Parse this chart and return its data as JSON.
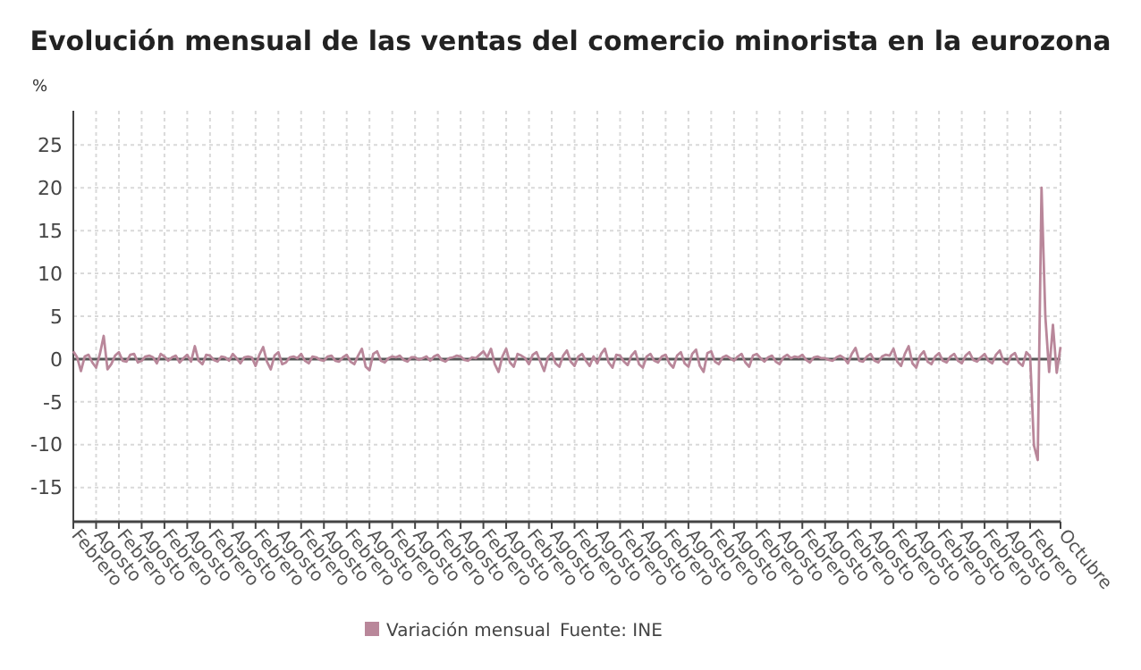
{
  "chart_data": {
    "type": "line",
    "title": "Evolución mensual de las ventas del comercio minorista en la eurozona",
    "ylabel": "%",
    "annotations": [
      "Fuente: INE"
    ],
    "categories": [
      "Febrero",
      null,
      null,
      null,
      null,
      null,
      "Agosto",
      null,
      null,
      null,
      null,
      null,
      "Febrero",
      null,
      null,
      null,
      null,
      null,
      "Agosto",
      null,
      null,
      null,
      null,
      null,
      "Febrero",
      null,
      null,
      null,
      null,
      null,
      "Agosto",
      null,
      null,
      null,
      null,
      null,
      "Febrero",
      null,
      null,
      null,
      null,
      null,
      "Agosto",
      null,
      null,
      null,
      null,
      null,
      "Febrero",
      null,
      null,
      null,
      null,
      null,
      "Agosto",
      null,
      null,
      null,
      null,
      null,
      "Febrero",
      null,
      null,
      null,
      null,
      null,
      "Agosto",
      null,
      null,
      null,
      null,
      null,
      "Febrero",
      null,
      null,
      null,
      null,
      null,
      "Agosto",
      null,
      null,
      null,
      null,
      null,
      "Febrero",
      null,
      null,
      null,
      null,
      null,
      "Agosto",
      null,
      null,
      null,
      null,
      null,
      "Febrero",
      null,
      null,
      null,
      null,
      null,
      "Agosto",
      null,
      null,
      null,
      null,
      null,
      "Febrero",
      null,
      null,
      null,
      null,
      null,
      "Agosto",
      null,
      null,
      null,
      null,
      null,
      "Febrero",
      null,
      null,
      null,
      null,
      null,
      "Agosto",
      null,
      null,
      null,
      null,
      null,
      "Febrero",
      null,
      null,
      null,
      null,
      null,
      "Agosto",
      null,
      null,
      null,
      null,
      null,
      "Febrero",
      null,
      null,
      null,
      null,
      null,
      "Agosto",
      null,
      null,
      null,
      null,
      null,
      "Febrero",
      null,
      null,
      null,
      null,
      null,
      "Agosto",
      null,
      null,
      null,
      null,
      null,
      "Febrero",
      null,
      null,
      null,
      null,
      null,
      "Agosto",
      null,
      null,
      null,
      null,
      null,
      "Febrero",
      null,
      null,
      null,
      null,
      null,
      "Agosto",
      null,
      null,
      null,
      null,
      null,
      "Febrero",
      null,
      null,
      null,
      null,
      null,
      "Agosto",
      null,
      null,
      null,
      null,
      null,
      "Febrero",
      null,
      null,
      null,
      null,
      null,
      "Agosto",
      null,
      null,
      null,
      null,
      null,
      "Febrero",
      null,
      null,
      null,
      null,
      null,
      "Agosto",
      null,
      null,
      null,
      null,
      null,
      "Febrero",
      null,
      null,
      null,
      null,
      null,
      "Agosto",
      null,
      null,
      null,
      null,
      null,
      "Febrero",
      null,
      null,
      null,
      null,
      null,
      "Agosto",
      null,
      null,
      null,
      null,
      null,
      "Febrero",
      null,
      null,
      null,
      null,
      null,
      null,
      null,
      "Octubre"
    ],
    "series": [
      {
        "name": "Variación mensual",
        "color": "#b9879a",
        "values": [
          0.9,
          0.2,
          -1.4,
          0.3,
          0.5,
          -0.4,
          -1.0,
          0.6,
          2.7,
          -1.2,
          -0.6,
          0.4,
          0.8,
          -0.2,
          -0.3,
          0.5,
          0.6,
          -0.4,
          -0.2,
          0.3,
          0.4,
          0.2,
          -0.5,
          0.6,
          0.3,
          -0.2,
          0.2,
          0.4,
          -0.4,
          0.1,
          0.5,
          -0.3,
          1.5,
          -0.2,
          -0.6,
          0.5,
          0.4,
          -0.1,
          -0.3,
          0.3,
          0.2,
          -0.2,
          0.6,
          0.1,
          -0.5,
          0.2,
          0.3,
          0.2,
          -0.8,
          0.5,
          1.4,
          -0.3,
          -1.2,
          0.4,
          0.8,
          -0.6,
          -0.4,
          0.2,
          0.3,
          0.1,
          0.6,
          -0.2,
          -0.5,
          0.3,
          0.2,
          -0.1,
          -0.2,
          0.3,
          0.4,
          -0.2,
          -0.3,
          0.2,
          0.5,
          -0.3,
          -0.6,
          0.4,
          1.2,
          -0.9,
          -1.3,
          0.6,
          0.9,
          -0.2,
          -0.4,
          0.1,
          0.3,
          0.2,
          0.4,
          -0.1,
          -0.3,
          0.2,
          0.2,
          -0.1,
          0.1,
          0.3,
          -0.2,
          0.3,
          0.5,
          -0.1,
          -0.3,
          0.1,
          0.2,
          0.4,
          0.3,
          -0.1,
          -0.2,
          0.2,
          0.1,
          0.5,
          0.9,
          0.2,
          1.2,
          -0.6,
          -1.5,
          0.3,
          1.2,
          -0.4,
          -0.9,
          0.6,
          0.4,
          0.1,
          -0.6,
          0.5,
          0.8,
          -0.3,
          -1.4,
          0.2,
          0.7,
          -0.5,
          -0.9,
          0.4,
          1.0,
          -0.3,
          -0.8,
          0.3,
          0.6,
          -0.2,
          -0.8,
          0.3,
          -0.5,
          0.6,
          1.2,
          -0.4,
          -1.0,
          0.5,
          0.4,
          -0.3,
          -0.7,
          0.4,
          0.9,
          -0.6,
          -1.0,
          0.3,
          0.6,
          -0.2,
          -0.4,
          0.3,
          0.5,
          -0.5,
          -1.0,
          0.4,
          0.8,
          -0.5,
          -0.9,
          0.6,
          1.1,
          -0.8,
          -1.5,
          0.7,
          0.9,
          -0.3,
          -0.6,
          0.2,
          0.4,
          0.1,
          -0.2,
          0.3,
          0.6,
          -0.4,
          -0.9,
          0.4,
          0.6,
          0.1,
          -0.3,
          0.2,
          0.4,
          -0.3,
          -0.6,
          0.2,
          0.5,
          0.1,
          0.3,
          0.2,
          0.5,
          -0.1,
          -0.4,
          0.2,
          0.3,
          0.1,
          0.1,
          -0.1,
          -0.2,
          0.2,
          0.4,
          0.1,
          -0.5,
          0.6,
          1.3,
          -0.2,
          -0.3,
          0.3,
          0.6,
          -0.2,
          -0.4,
          0.3,
          0.5,
          0.4,
          1.2,
          -0.3,
          -0.8,
          0.6,
          1.5,
          -0.5,
          -1.0,
          0.4,
          0.9,
          -0.3,
          -0.6,
          0.3,
          0.7,
          -0.2,
          -0.4,
          0.3,
          0.6,
          -0.2,
          -0.5,
          0.4,
          0.8,
          -0.1,
          -0.3,
          0.2,
          0.6,
          -0.2,
          -0.5,
          0.5,
          1.0,
          -0.3,
          -0.6,
          0.4,
          0.7,
          -0.4,
          -0.8,
          0.8,
          0.3,
          -10.1,
          -11.8,
          20.0,
          5.0,
          -1.5,
          4.0,
          -1.6,
          1.4
        ]
      }
    ],
    "ylim": [
      -19,
      29
    ],
    "yticks": [
      -15,
      -10,
      -5,
      0,
      5,
      10,
      15,
      20,
      25
    ],
    "ref_lines": [
      {
        "axis": "y",
        "value": 0,
        "color": "#555555"
      }
    ],
    "grid": true,
    "legend": "bottom",
    "marker": "none",
    "line_style": "solid"
  }
}
